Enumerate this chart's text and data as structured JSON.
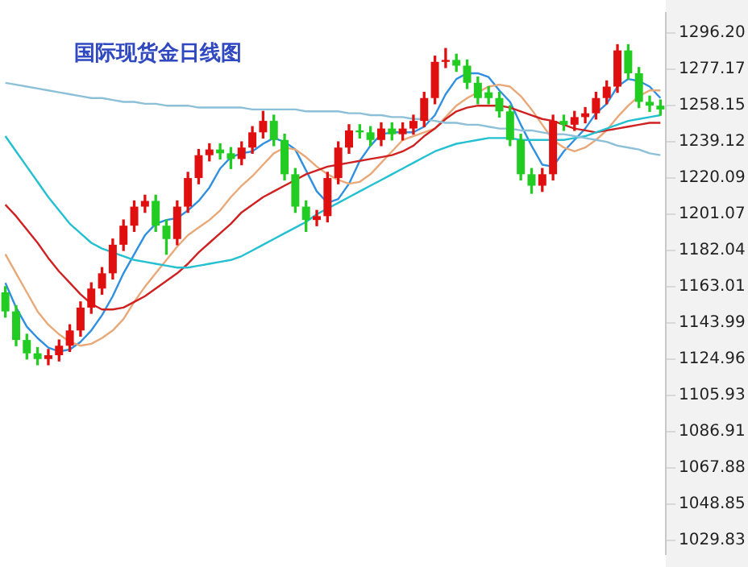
{
  "chart_data": {
    "type": "candlestick",
    "title": "国际现货金日线图",
    "categories": [
      null,
      null,
      null,
      null,
      null,
      null,
      null,
      null,
      null,
      null,
      null,
      null,
      null,
      null,
      null,
      null,
      null,
      null,
      null,
      null,
      null,
      null,
      null,
      null,
      null,
      null,
      null,
      null,
      null,
      null,
      null,
      null,
      null,
      null,
      null,
      null,
      null,
      null,
      null,
      null,
      null,
      null,
      null,
      null,
      null,
      null,
      null,
      null,
      null,
      null,
      null,
      null,
      null,
      null,
      null,
      null,
      null,
      null,
      null,
      null,
      null,
      null
    ],
    "ohlc": [
      [
        1160,
        1163,
        1147,
        1150
      ],
      [
        1150,
        1153,
        1132,
        1135
      ],
      [
        1135,
        1138,
        1125,
        1128
      ],
      [
        1128,
        1131,
        1122,
        1125
      ],
      [
        1125,
        1130,
        1122,
        1127
      ],
      [
        1127,
        1135,
        1124,
        1132
      ],
      [
        1132,
        1143,
        1129,
        1140
      ],
      [
        1140,
        1155,
        1137,
        1152
      ],
      [
        1152,
        1165,
        1149,
        1162
      ],
      [
        1162,
        1173,
        1159,
        1170
      ],
      [
        1170,
        1188,
        1167,
        1185
      ],
      [
        1185,
        1198,
        1182,
        1195
      ],
      [
        1195,
        1208,
        1192,
        1205
      ],
      [
        1205,
        1211,
        1202,
        1208
      ],
      [
        1208,
        1211,
        1192,
        1195
      ],
      [
        1195,
        1198,
        1180,
        1188
      ],
      [
        1188,
        1208,
        1185,
        1205
      ],
      [
        1205,
        1223,
        1202,
        1220
      ],
      [
        1220,
        1235,
        1217,
        1232
      ],
      [
        1232,
        1238,
        1229,
        1235
      ],
      [
        1235,
        1238,
        1230,
        1233
      ],
      [
        1233,
        1236,
        1225,
        1230
      ],
      [
        1230,
        1239,
        1227,
        1236
      ],
      [
        1236,
        1247,
        1233,
        1244
      ],
      [
        1244,
        1255,
        1241,
        1250
      ],
      [
        1250,
        1253,
        1237,
        1240
      ],
      [
        1240,
        1243,
        1219,
        1222
      ],
      [
        1222,
        1225,
        1202,
        1205
      ],
      [
        1205,
        1208,
        1192,
        1198
      ],
      [
        1198,
        1203,
        1195,
        1200
      ],
      [
        1200,
        1223,
        1197,
        1220
      ],
      [
        1220,
        1239,
        1217,
        1236
      ],
      [
        1236,
        1248,
        1233,
        1245
      ],
      [
        1245,
        1248,
        1241,
        1244
      ],
      [
        1244,
        1247,
        1237,
        1240
      ],
      [
        1240,
        1249,
        1237,
        1246
      ],
      [
        1246,
        1249,
        1240,
        1243
      ],
      [
        1243,
        1249,
        1240,
        1246
      ],
      [
        1246,
        1253,
        1243,
        1250
      ],
      [
        1250,
        1265,
        1247,
        1262
      ],
      [
        1262,
        1284,
        1259,
        1281
      ],
      [
        1281,
        1288,
        1278,
        1282
      ],
      [
        1282,
        1285,
        1276,
        1279
      ],
      [
        1279,
        1282,
        1267,
        1270
      ],
      [
        1270,
        1273,
        1259,
        1262
      ],
      [
        1265,
        1268,
        1259,
        1262
      ],
      [
        1262,
        1265,
        1252,
        1255
      ],
      [
        1255,
        1258,
        1237,
        1240
      ],
      [
        1240,
        1243,
        1219,
        1222
      ],
      [
        1222,
        1225,
        1212,
        1216
      ],
      [
        1216,
        1225,
        1213,
        1222
      ],
      [
        1222,
        1253,
        1219,
        1250
      ],
      [
        1250,
        1253,
        1245,
        1248
      ],
      [
        1248,
        1255,
        1245,
        1252
      ],
      [
        1252,
        1257,
        1249,
        1254
      ],
      [
        1254,
        1265,
        1251,
        1262
      ],
      [
        1262,
        1271,
        1259,
        1268
      ],
      [
        1268,
        1290,
        1265,
        1287
      ],
      [
        1287,
        1290,
        1272,
        1275
      ],
      [
        1275,
        1278,
        1257,
        1260
      ],
      [
        1260,
        1263,
        1255,
        1258
      ],
      [
        1258,
        1261,
        1253,
        1256
      ]
    ],
    "colors": [
      "#22cc22",
      "#22cc22",
      "#22cc22",
      "#22cc22",
      "#e01010",
      "#e01010",
      "#e01010",
      "#e01010",
      "#e01010",
      "#e01010",
      "#e01010",
      "#e01010",
      "#e01010",
      "#e01010",
      "#22cc22",
      "#22cc22",
      "#e01010",
      "#e01010",
      "#e01010",
      "#e01010",
      "#22cc22",
      "#22cc22",
      "#e01010",
      "#e01010",
      "#e01010",
      "#22cc22",
      "#22cc22",
      "#22cc22",
      "#22cc22",
      "#e01010",
      "#e01010",
      "#e01010",
      "#e01010",
      "#22cc22",
      "#22cc22",
      "#e01010",
      "#22cc22",
      "#e01010",
      "#e01010",
      "#e01010",
      "#e01010",
      "#e01010",
      "#22cc22",
      "#22cc22",
      "#22cc22",
      "#22cc22",
      "#22cc22",
      "#22cc22",
      "#22cc22",
      "#22cc22",
      "#e01010",
      "#e01010",
      "#22cc22",
      "#e01010",
      "#e01010",
      "#e01010",
      "#e01010",
      "#e01010",
      "#22cc22",
      "#22cc22",
      "#22cc22",
      "#22cc22"
    ],
    "series": [
      {
        "type": "line",
        "color": "#8cc0d8",
        "values": [
          1270,
          1269,
          1268,
          1267,
          1266,
          1265,
          1264,
          1263,
          1262,
          1262,
          1261,
          1260,
          1260,
          1259,
          1259,
          1258,
          1258,
          1258,
          1257,
          1257,
          1257,
          1257,
          1257,
          1256,
          1256,
          1256,
          1256,
          1256,
          1255,
          1255,
          1255,
          1255,
          1254,
          1254,
          1253,
          1253,
          1252,
          1252,
          1251,
          1251,
          1250,
          1249,
          1249,
          1248,
          1248,
          1247,
          1246,
          1246,
          1245,
          1245,
          1244,
          1243,
          1243,
          1242,
          1241,
          1240,
          1239,
          1237,
          1236,
          1235,
          1233,
          1232
        ]
      },
      {
        "type": "line",
        "color": "#22c0d0",
        "values": [
          1242,
          1234,
          1226,
          1218,
          1210,
          1203,
          1196,
          1191,
          1186,
          1183,
          1181,
          1179,
          1177,
          1176,
          1175,
          1174,
          1173,
          1173,
          1174,
          1175,
          1176,
          1177,
          1179,
          1182,
          1185,
          1188,
          1191,
          1194,
          1197,
          1201,
          1204,
          1207,
          1210,
          1213,
          1216,
          1219,
          1222,
          1225,
          1228,
          1231,
          1234,
          1236,
          1238,
          1239,
          1240,
          1241,
          1241,
          1241,
          1240,
          1240,
          1240,
          1240,
          1240,
          1241,
          1242,
          1244,
          1246,
          1248,
          1250,
          1251,
          1252,
          1253
        ]
      },
      {
        "type": "line",
        "color": "#d02020",
        "values": [
          1206,
          1200,
          1193,
          1186,
          1178,
          1171,
          1165,
          1159,
          1154,
          1151,
          1151,
          1152,
          1155,
          1158,
          1162,
          1166,
          1170,
          1175,
          1181,
          1186,
          1191,
          1196,
          1202,
          1206,
          1210,
          1213,
          1216,
          1219,
          1222,
          1224,
          1226,
          1227,
          1228,
          1229,
          1230,
          1231,
          1232,
          1234,
          1237,
          1242,
          1246,
          1251,
          1255,
          1257,
          1258,
          1258,
          1258,
          1257,
          1255,
          1253,
          1251,
          1250,
          1248,
          1246,
          1245,
          1244,
          1245,
          1246,
          1247,
          1248,
          1249,
          1249
        ]
      },
      {
        "type": "line",
        "color": "#e8a878",
        "values": [
          1180,
          1170,
          1160,
          1150,
          1143,
          1138,
          1134,
          1132,
          1133,
          1136,
          1140,
          1146,
          1155,
          1163,
          1170,
          1177,
          1184,
          1190,
          1194,
          1198,
          1203,
          1210,
          1216,
          1221,
          1227,
          1233,
          1236,
          1235,
          1231,
          1226,
          1222,
          1219,
          1217,
          1218,
          1222,
          1228,
          1234,
          1240,
          1242,
          1244,
          1246,
          1252,
          1258,
          1262,
          1265,
          1268,
          1269,
          1268,
          1263,
          1256,
          1248,
          1240,
          1236,
          1234,
          1236,
          1240,
          1245,
          1252,
          1258,
          1263,
          1266,
          1266
        ]
      },
      {
        "type": "line",
        "color": "#2f8fe0",
        "values": [
          1165,
          1152,
          1142,
          1136,
          1131,
          1129,
          1130,
          1134,
          1140,
          1148,
          1158,
          1170,
          1180,
          1190,
          1196,
          1198,
          1199,
          1203,
          1208,
          1215,
          1225,
          1231,
          1233,
          1234,
          1238,
          1241,
          1239,
          1235,
          1224,
          1213,
          1207,
          1209,
          1217,
          1229,
          1237,
          1243,
          1244,
          1244,
          1244,
          1247,
          1253,
          1264,
          1272,
          1275,
          1275,
          1273,
          1266,
          1260,
          1248,
          1237,
          1227,
          1226,
          1234,
          1240,
          1246,
          1254,
          1259,
          1268,
          1272,
          1271,
          1268,
          1262
        ]
      }
    ],
    "ylim": [
      1022.6,
      1306.7
    ],
    "yticks": [
      {
        "value": 1296.2,
        "label": "1296.20"
      },
      1277.17,
      1258.15,
      1239.12,
      1220.09,
      1201.07,
      1182.04,
      1163.01,
      1143.99,
      1124.96,
      1105.93,
      1086.91,
      1067.88,
      1048.85,
      1029.83
    ],
    "grid": false,
    "legend": false,
    "tick_labels": "y",
    "marker": "none"
  }
}
